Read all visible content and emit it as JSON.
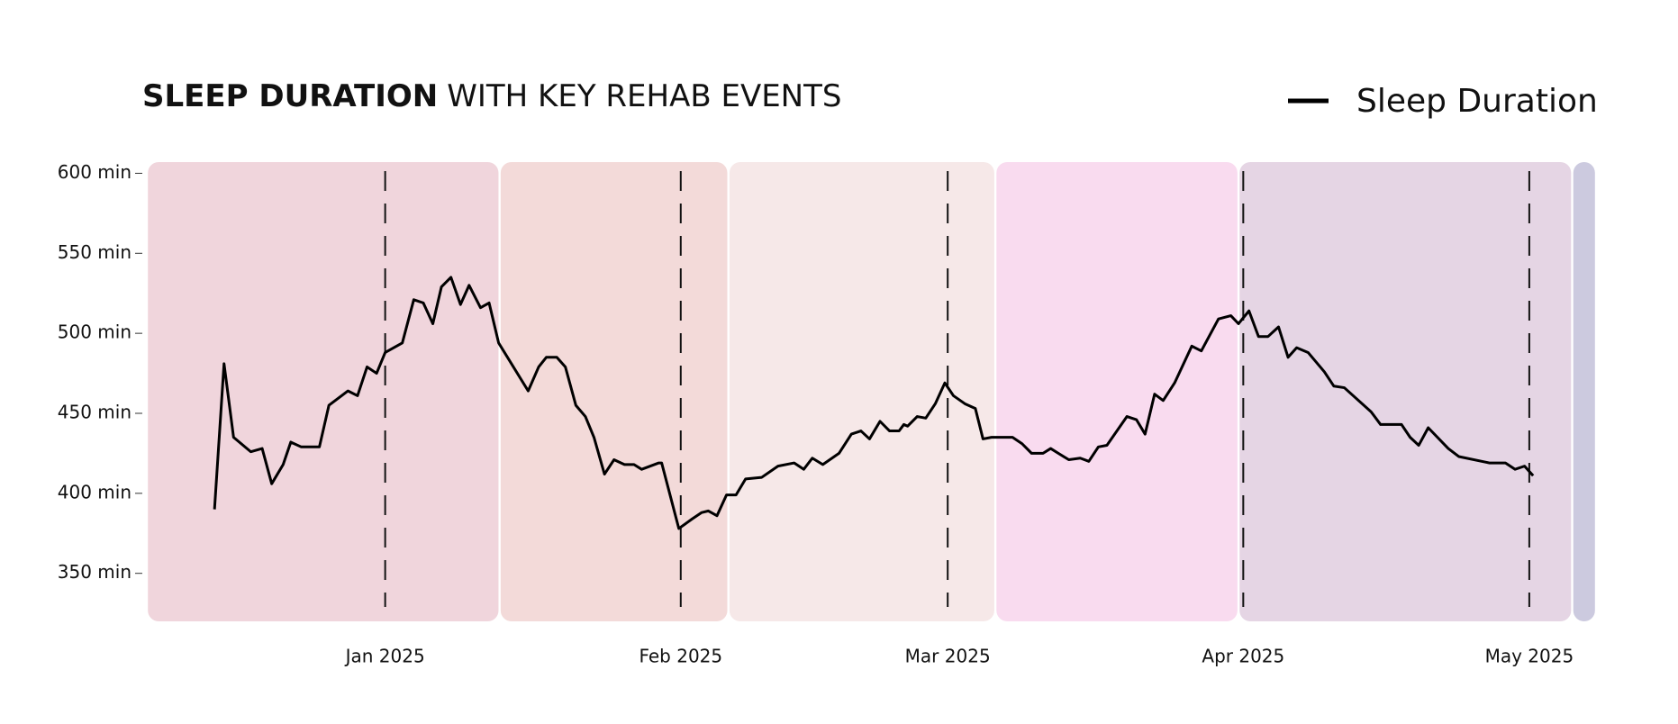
{
  "chart_data": {
    "type": "line",
    "title": [
      "SLEEP DURATION",
      "WITH KEY REHAB EVENTS"
    ],
    "xticks": [
      {
        "value": 0,
        "label": "Jan 2025"
      },
      {
        "value": 31,
        "label": "Feb 2025"
      },
      {
        "value": 59,
        "label": "Mar 2025"
      },
      {
        "value": 90,
        "label": "Apr 2025"
      },
      {
        "value": 120,
        "label": "May 2025"
      }
    ],
    "xlim": [
      -25,
      127
    ],
    "ylim": [
      320,
      607
    ],
    "yticks": [
      {
        "value": 350,
        "label": "350 min"
      },
      {
        "value": 400,
        "label": "400 min"
      },
      {
        "value": 450,
        "label": "450 min"
      },
      {
        "value": 500,
        "label": "500 min"
      },
      {
        "value": 550,
        "label": "550 min"
      },
      {
        "value": 600,
        "label": "600 min"
      }
    ],
    "bands": [
      {
        "start": -25,
        "end": 12,
        "color": "#f0d5dc"
      },
      {
        "start": 12,
        "end": 36,
        "color": "#f3dad9"
      },
      {
        "start": 36,
        "end": 64,
        "color": "#f6e8e8"
      },
      {
        "start": 64,
        "end": 89.5,
        "color": "#f9dbef"
      },
      {
        "start": 89.5,
        "end": 124.5,
        "color": "#e5d5e4"
      },
      {
        "start": 124.5,
        "end": 127,
        "color": "#cccadf"
      }
    ],
    "events": [
      0,
      31,
      59,
      90,
      120
    ],
    "legend": "top-right",
    "x": [
      -17.9,
      -16.9,
      -15.9,
      -14.1,
      -12.9,
      -11.9,
      -10.7,
      -9.9,
      -8.8,
      -6.9,
      -5.9,
      -3.9,
      -2.9,
      -1.9,
      -0.9,
      0,
      1.8,
      3.0,
      4.0,
      5.0,
      5.9,
      6.9,
      7.9,
      8.8,
      10.0,
      10.9,
      11.9,
      15.0,
      16.1,
      16.9,
      18.0,
      18.9,
      20.0,
      21.0,
      21.9,
      23.0,
      24.0,
      25.1,
      26.1,
      26.9,
      28.7,
      29.0,
      30.8,
      32.2,
      33.2,
      33.9,
      34.8,
      35.8,
      36.8,
      37.8,
      39.5,
      41.2,
      42.9,
      43.9,
      44.8,
      45.9,
      47.6,
      48.9,
      49.9,
      50.8,
      51.9,
      52.9,
      53.9,
      54.4,
      54.8,
      55.8,
      56.7,
      57.7,
      58.7,
      59.6,
      60.8,
      61.9,
      62.7,
      63.6,
      65.8,
      66.8,
      67.8,
      69.0,
      69.8,
      70.6,
      71.7,
      72.9,
      73.8,
      74.8,
      75.7,
      77.8,
      78.8,
      79.7,
      80.7,
      81.6,
      82.8,
      84.6,
      85.6,
      87.4,
      88.7,
      89.5,
      90.6,
      91.6,
      92.6,
      93.7,
      94.7,
      95.6,
      96.8,
      98.5,
      99.5,
      100.6,
      103.4,
      104.4,
      106.6,
      107.5,
      108.4,
      109.4,
      111.5,
      112.6,
      115.8,
      117.5,
      118.5,
      119.5,
      120.4
    ],
    "series": [
      {
        "name": "Sleep Duration",
        "color": "#000000",
        "values": [
          390,
          481,
          435,
          426,
          428,
          406,
          418,
          432,
          429,
          429,
          455,
          464,
          461,
          479,
          475,
          488,
          494,
          521,
          519,
          506,
          529,
          535,
          518,
          530,
          516,
          519,
          494,
          464,
          479,
          485,
          485,
          479,
          455,
          448,
          435,
          412,
          421,
          418,
          418,
          415,
          419,
          419,
          378,
          384,
          388,
          389,
          386,
          399,
          399,
          409,
          410,
          417,
          419,
          415,
          422,
          418,
          425,
          437,
          439,
          434,
          445,
          439,
          439,
          443,
          442,
          448,
          447,
          456,
          469,
          461,
          456,
          453,
          434,
          435,
          435,
          431,
          425,
          425,
          428,
          425,
          421,
          422,
          420,
          429,
          430,
          448,
          446,
          437,
          462,
          458,
          469,
          492,
          489,
          509,
          511,
          506,
          514,
          498,
          498,
          504,
          485,
          491,
          488,
          476,
          467,
          466,
          451,
          443,
          443,
          435,
          430,
          441,
          428,
          423,
          419,
          419,
          415,
          417,
          411
        ]
      }
    ]
  }
}
